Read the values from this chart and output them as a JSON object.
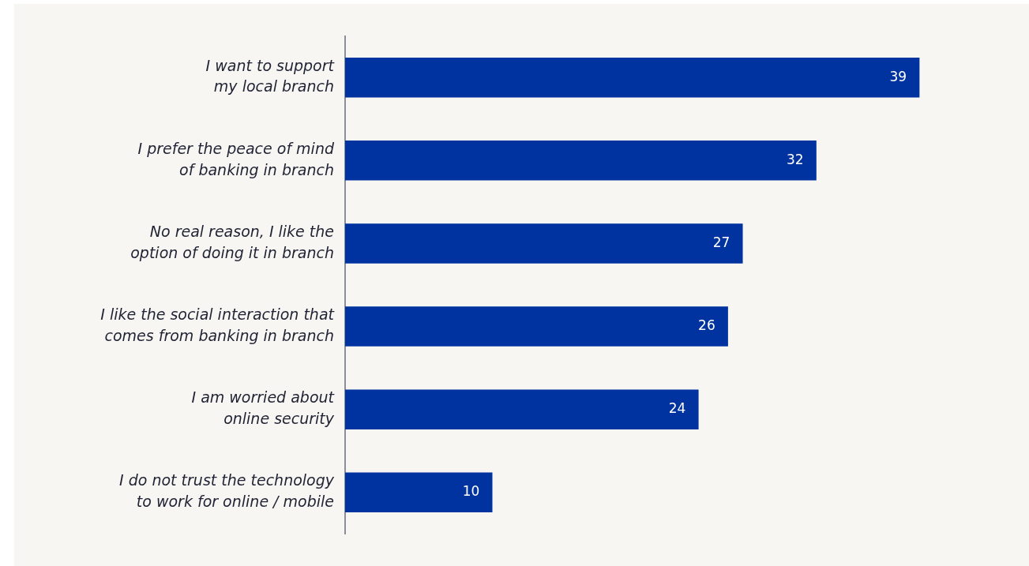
{
  "chart_data": {
    "type": "bar",
    "orientation": "horizontal",
    "data_labels": true,
    "color": "#0033a0",
    "categories": [
      "I want to support my local branch",
      "I prefer the peace of mind of banking in branch",
      "No real reason, I like the option of doing it in branch",
      "I like the social interaction that comes from banking in branch",
      "I am worried about online security",
      "I do not trust the technology to work for online / mobile"
    ],
    "values": [
      39,
      32,
      27,
      26,
      24,
      10
    ]
  }
}
